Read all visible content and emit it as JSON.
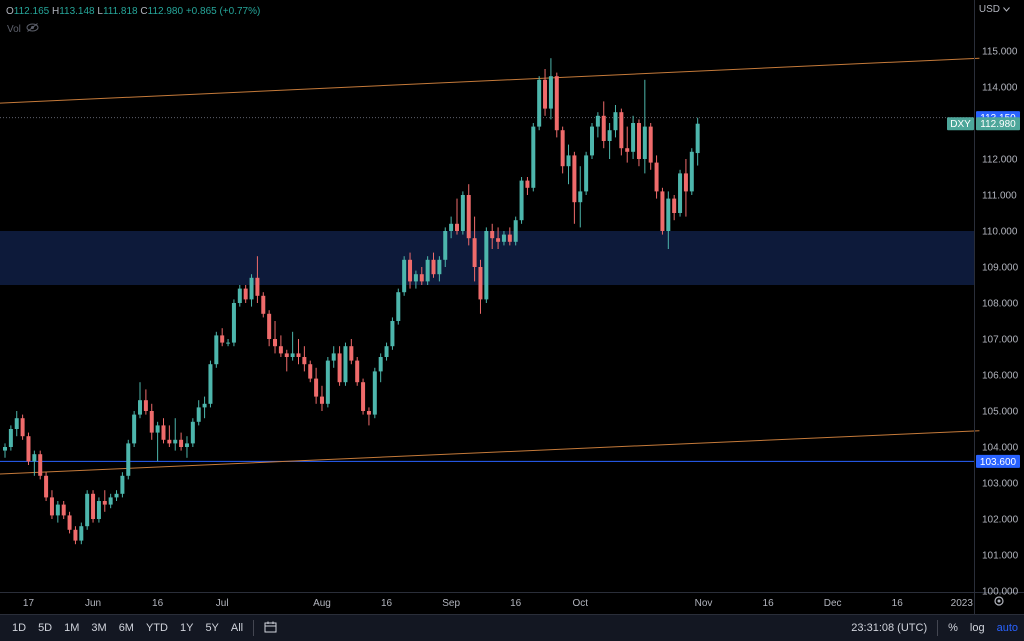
{
  "legend": {
    "open_label": "O",
    "open": "112.165",
    "high_label": "H",
    "high": "113.148",
    "low_label": "L",
    "low": "111.818",
    "close_label": "C",
    "close": "112.980",
    "change": "+0.865 (+0.77%)",
    "vol_label": "Vol"
  },
  "currency": "USD",
  "colors": {
    "up": "#4db6ac",
    "down": "#ef6b6b",
    "zone": "#0d1a3a",
    "trend": "#c57a3a",
    "support": "#2962ff",
    "tag": "#2962ff",
    "dxy": "#4da69a"
  },
  "tags": {
    "high_price": "113.150",
    "symbol": "DXY",
    "last_price": "112.980",
    "support_price": "103.600"
  },
  "bottom_bar": {
    "timeframes": [
      "1D",
      "5D",
      "1M",
      "3M",
      "6M",
      "YTD",
      "1Y",
      "5Y",
      "All"
    ],
    "clock": "23:31:08 (UTC)",
    "percent": "%",
    "log": "log",
    "auto": "auto"
  },
  "chart_data": {
    "type": "candlestick",
    "symbol": "DXY",
    "ylim": [
      100,
      115.8
    ],
    "y_ticks": [
      "115.000",
      "114.000",
      "113.000",
      "112.000",
      "111.000",
      "110.000",
      "109.000",
      "108.000",
      "107.000",
      "106.000",
      "105.000",
      "104.000",
      "103.000",
      "102.000",
      "101.000",
      "100.000"
    ],
    "x_ticks": [
      {
        "label": "17",
        "i": 4
      },
      {
        "label": "Jun",
        "i": 15
      },
      {
        "label": "16",
        "i": 26
      },
      {
        "label": "Jul",
        "i": 37
      },
      {
        "label": "Aug",
        "i": 54
      },
      {
        "label": "16",
        "i": 65
      },
      {
        "label": "Sep",
        "i": 76
      },
      {
        "label": "16",
        "i": 87
      },
      {
        "label": "Oct",
        "i": 98
      },
      {
        "label": "Nov",
        "i": 119
      },
      {
        "label": "16",
        "i": 130
      },
      {
        "label": "Dec",
        "i": 141
      },
      {
        "label": "16",
        "i": 152
      },
      {
        "label": "2023",
        "i": 163
      }
    ],
    "zone": [
      108.5,
      110.0
    ],
    "support_line": 103.6,
    "high_line": 113.15,
    "last_price": 112.98,
    "trendlines": [
      {
        "from": [
          -1,
          113.55
        ],
        "to": [
          166,
          114.8
        ]
      },
      {
        "from": [
          -1,
          103.25
        ],
        "to": [
          166,
          104.45
        ]
      }
    ],
    "candles": [
      [
        103.9,
        104.1,
        103.7,
        104.0
      ],
      [
        104.0,
        104.6,
        103.9,
        104.5
      ],
      [
        104.5,
        105.0,
        104.3,
        104.8
      ],
      [
        104.8,
        104.9,
        104.2,
        104.3
      ],
      [
        104.3,
        104.4,
        103.5,
        103.6
      ],
      [
        103.6,
        103.9,
        103.2,
        103.8
      ],
      [
        103.8,
        103.9,
        103.1,
        103.2
      ],
      [
        103.2,
        103.3,
        102.5,
        102.6
      ],
      [
        102.6,
        102.8,
        102.0,
        102.1
      ],
      [
        102.1,
        102.5,
        101.9,
        102.4
      ],
      [
        102.4,
        102.5,
        102.0,
        102.1
      ],
      [
        102.1,
        102.2,
        101.6,
        101.7
      ],
      [
        101.7,
        101.8,
        101.3,
        101.4
      ],
      [
        101.4,
        101.9,
        101.3,
        101.8
      ],
      [
        101.8,
        102.8,
        101.7,
        102.7
      ],
      [
        102.7,
        102.8,
        101.9,
        102.0
      ],
      [
        102.0,
        102.6,
        101.9,
        102.5
      ],
      [
        102.5,
        102.8,
        102.2,
        102.4
      ],
      [
        102.4,
        102.7,
        102.3,
        102.6
      ],
      [
        102.6,
        102.8,
        102.5,
        102.7
      ],
      [
        102.7,
        103.3,
        102.6,
        103.2
      ],
      [
        103.2,
        104.2,
        103.1,
        104.1
      ],
      [
        104.1,
        105.0,
        104.0,
        104.9
      ],
      [
        104.9,
        105.8,
        104.8,
        105.3
      ],
      [
        105.3,
        105.6,
        104.9,
        105.0
      ],
      [
        105.0,
        105.2,
        104.2,
        104.4
      ],
      [
        104.4,
        104.7,
        103.6,
        104.6
      ],
      [
        104.6,
        104.8,
        104.1,
        104.2
      ],
      [
        104.2,
        104.6,
        104.0,
        104.1
      ],
      [
        104.1,
        104.8,
        103.9,
        104.2
      ],
      [
        104.2,
        104.4,
        103.9,
        104.0
      ],
      [
        104.0,
        104.3,
        103.7,
        104.1
      ],
      [
        104.1,
        104.8,
        104.0,
        104.7
      ],
      [
        104.7,
        105.3,
        104.6,
        105.1
      ],
      [
        105.1,
        105.4,
        104.8,
        105.2
      ],
      [
        105.2,
        106.4,
        105.1,
        106.3
      ],
      [
        106.3,
        107.2,
        106.2,
        107.1
      ],
      [
        107.1,
        107.3,
        106.8,
        106.9
      ],
      [
        106.9,
        107.0,
        106.8,
        106.9
      ],
      [
        106.9,
        108.1,
        106.8,
        108.0
      ],
      [
        108.0,
        108.5,
        107.9,
        108.4
      ],
      [
        108.4,
        108.5,
        108.0,
        108.1
      ],
      [
        108.1,
        108.8,
        107.9,
        108.7
      ],
      [
        108.7,
        109.3,
        108.0,
        108.2
      ],
      [
        108.2,
        108.3,
        107.6,
        107.7
      ],
      [
        107.7,
        107.8,
        106.8,
        107.0
      ],
      [
        107.0,
        107.5,
        106.6,
        106.8
      ],
      [
        106.8,
        107.1,
        106.5,
        106.6
      ],
      [
        106.6,
        106.7,
        106.1,
        106.5
      ],
      [
        106.5,
        107.2,
        106.4,
        106.6
      ],
      [
        106.6,
        107.0,
        106.3,
        106.5
      ],
      [
        106.5,
        106.8,
        106.1,
        106.3
      ],
      [
        106.3,
        106.4,
        105.8,
        105.9
      ],
      [
        105.9,
        106.2,
        105.2,
        105.4
      ],
      [
        105.4,
        105.7,
        105.0,
        105.2
      ],
      [
        105.2,
        106.5,
        105.1,
        106.4
      ],
      [
        106.4,
        106.8,
        106.2,
        106.6
      ],
      [
        106.6,
        106.8,
        105.7,
        105.8
      ],
      [
        105.8,
        106.9,
        105.7,
        106.8
      ],
      [
        106.8,
        107.0,
        106.3,
        106.4
      ],
      [
        106.4,
        106.5,
        105.7,
        105.8
      ],
      [
        105.8,
        105.9,
        104.9,
        105.0
      ],
      [
        105.0,
        105.1,
        104.6,
        104.9
      ],
      [
        104.9,
        106.2,
        104.8,
        106.1
      ],
      [
        106.1,
        106.6,
        105.8,
        106.5
      ],
      [
        106.5,
        106.9,
        106.4,
        106.8
      ],
      [
        106.8,
        107.6,
        106.7,
        107.5
      ],
      [
        107.5,
        108.4,
        107.4,
        108.3
      ],
      [
        108.3,
        109.3,
        108.2,
        109.2
      ],
      [
        109.2,
        109.4,
        108.4,
        108.6
      ],
      [
        108.6,
        108.9,
        108.4,
        108.8
      ],
      [
        108.8,
        109.0,
        108.5,
        108.6
      ],
      [
        108.6,
        109.3,
        108.5,
        109.2
      ],
      [
        109.2,
        109.4,
        108.7,
        108.8
      ],
      [
        108.8,
        109.3,
        108.6,
        109.2
      ],
      [
        109.2,
        110.1,
        109.0,
        110.0
      ],
      [
        110.0,
        110.4,
        109.8,
        110.2
      ],
      [
        110.2,
        110.9,
        109.9,
        110.0
      ],
      [
        110.0,
        111.1,
        109.9,
        111.0
      ],
      [
        111.0,
        111.3,
        109.6,
        109.8
      ],
      [
        109.8,
        110.4,
        108.6,
        109.0
      ],
      [
        109.0,
        109.2,
        107.7,
        108.1
      ],
      [
        108.1,
        110.1,
        108.0,
        110.0
      ],
      [
        110.0,
        110.2,
        109.5,
        109.8
      ],
      [
        109.8,
        110.1,
        109.5,
        109.7
      ],
      [
        109.7,
        110.0,
        109.6,
        109.9
      ],
      [
        109.9,
        110.1,
        109.6,
        109.7
      ],
      [
        109.7,
        110.4,
        109.6,
        110.3
      ],
      [
        110.3,
        111.5,
        110.2,
        111.4
      ],
      [
        111.4,
        111.5,
        111.0,
        111.2
      ],
      [
        111.2,
        113.0,
        111.1,
        112.9
      ],
      [
        112.9,
        114.3,
        112.8,
        114.2
      ],
      [
        114.2,
        114.5,
        113.2,
        113.4
      ],
      [
        113.4,
        114.8,
        113.1,
        114.3
      ],
      [
        114.3,
        114.4,
        112.6,
        112.8
      ],
      [
        112.8,
        112.9,
        111.6,
        111.8
      ],
      [
        111.8,
        112.4,
        111.3,
        112.1
      ],
      [
        112.1,
        112.2,
        110.2,
        110.8
      ],
      [
        110.8,
        111.8,
        110.1,
        111.1
      ],
      [
        111.1,
        112.2,
        111.0,
        112.1
      ],
      [
        112.1,
        113.0,
        112.0,
        112.9
      ],
      [
        112.9,
        113.3,
        112.6,
        113.2
      ],
      [
        113.2,
        113.6,
        112.3,
        112.5
      ],
      [
        112.5,
        113.0,
        112.0,
        112.8
      ],
      [
        112.8,
        113.5,
        112.6,
        113.3
      ],
      [
        113.3,
        113.4,
        112.1,
        112.3
      ],
      [
        112.3,
        112.9,
        111.9,
        112.2
      ],
      [
        112.2,
        113.2,
        112.0,
        113.0
      ],
      [
        113.0,
        113.1,
        111.8,
        112.0
      ],
      [
        112.0,
        114.2,
        111.6,
        112.9
      ],
      [
        112.9,
        113.0,
        111.7,
        111.9
      ],
      [
        111.9,
        112.1,
        110.9,
        111.1
      ],
      [
        111.1,
        111.2,
        109.9,
        110.0
      ],
      [
        110.0,
        111.1,
        109.5,
        110.9
      ],
      [
        110.9,
        111.0,
        110.3,
        110.5
      ],
      [
        110.5,
        111.7,
        110.4,
        111.6
      ],
      [
        111.6,
        112.0,
        110.4,
        111.1
      ],
      [
        111.1,
        112.3,
        111.0,
        112.2
      ],
      [
        112.165,
        113.148,
        111.818,
        112.98
      ]
    ]
  }
}
